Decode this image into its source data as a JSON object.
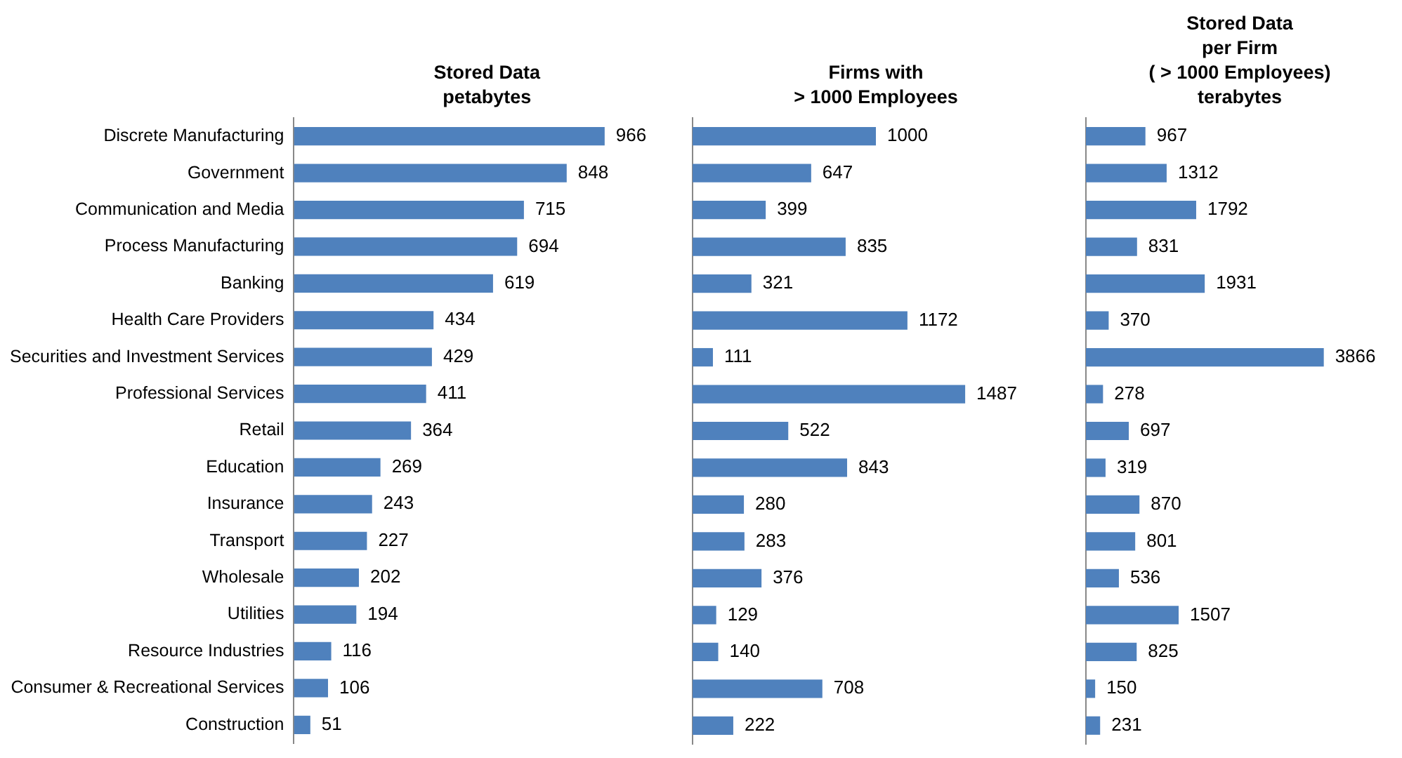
{
  "chart_data": [
    {
      "type": "bar",
      "orientation": "horizontal",
      "title": "Stored Data\npetabytes",
      "categories": [
        "Discrete Manufacturing",
        "Government",
        "Communication and Media",
        "Process Manufacturing",
        "Banking",
        "Health Care Providers",
        "Securities and Investment Services",
        "Professional Services",
        "Retail",
        "Education",
        "Insurance",
        "Transport",
        "Wholesale",
        "Utilities",
        "Resource Industries",
        "Consumer & Recreational Services",
        "Construction"
      ],
      "values": [
        966,
        848,
        715,
        694,
        619,
        434,
        429,
        411,
        364,
        269,
        243,
        227,
        202,
        194,
        116,
        106,
        51
      ],
      "color": "#4f81bd",
      "data_labels": true,
      "tick_labels": "y"
    },
    {
      "type": "bar",
      "orientation": "horizontal",
      "title": "Firms with\n> 1000 Employees",
      "categories": [
        null,
        null,
        null,
        null,
        null,
        null,
        null,
        null,
        null,
        null,
        null,
        null,
        null,
        null,
        null,
        null,
        null
      ],
      "values": [
        1000,
        647,
        399,
        835,
        321,
        1172,
        111,
        1487,
        522,
        843,
        280,
        283,
        376,
        129,
        140,
        708,
        222
      ],
      "color": "#4f81bd",
      "data_labels": true,
      "tick_labels": false
    },
    {
      "type": "bar",
      "orientation": "horizontal",
      "title": "Stored Data\nper Firm\n( > 1000 Employees)\nterabytes",
      "categories": [
        null,
        null,
        null,
        null,
        null,
        null,
        null,
        null,
        null,
        null,
        null,
        null,
        null,
        null,
        null,
        null,
        null
      ],
      "values": [
        967,
        1312,
        1792,
        831,
        1931,
        370,
        3866,
        278,
        697,
        319,
        870,
        801,
        536,
        1507,
        825,
        150,
        231
      ],
      "color": "#4f81bd",
      "data_labels": true,
      "tick_labels": false
    }
  ]
}
